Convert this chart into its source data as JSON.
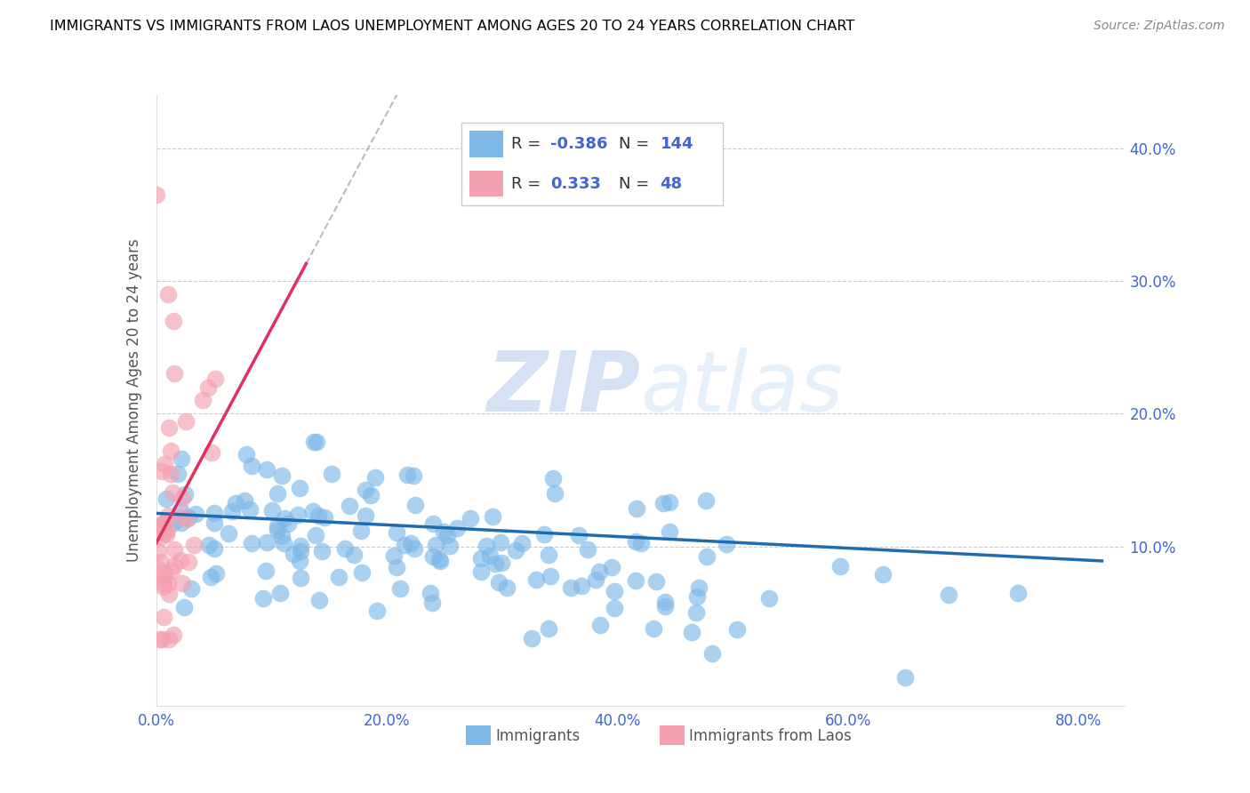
{
  "title": "IMMIGRANTS VS IMMIGRANTS FROM LAOS UNEMPLOYMENT AMONG AGES 20 TO 24 YEARS CORRELATION CHART",
  "source": "Source: ZipAtlas.com",
  "ylabel": "Unemployment Among Ages 20 to 24 years",
  "xlim": [
    0.0,
    0.84
  ],
  "ylim": [
    -0.02,
    0.44
  ],
  "R_blue": -0.386,
  "N_blue": 144,
  "R_pink": 0.333,
  "N_pink": 48,
  "blue_color": "#7EB9E8",
  "pink_color": "#F4A0B0",
  "blue_line_color": "#1E6BB0",
  "pink_line_color": "#E03060",
  "watermark_zip": "ZIP",
  "watermark_atlas": "atlas",
  "legend_label_blue": "Immigrants",
  "legend_label_pink": "Immigrants from Laos",
  "grid_color": "#CCCCCC",
  "tick_color": "#4466CC",
  "title_color": "#000000",
  "source_color": "#888888"
}
